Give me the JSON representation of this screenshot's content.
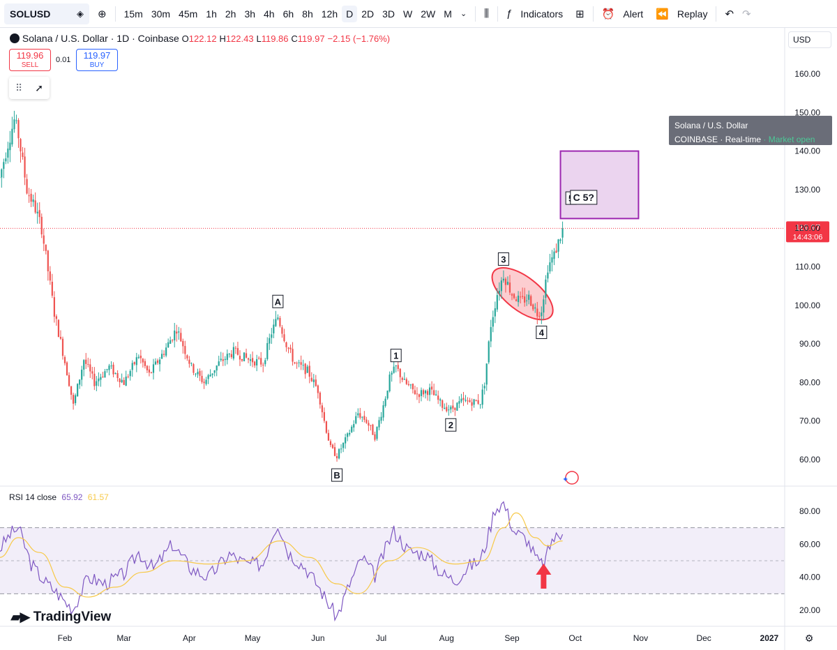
{
  "toolbar": {
    "symbol": "SOLUSD",
    "intervals": [
      "15m",
      "30m",
      "45m",
      "1h",
      "2h",
      "3h",
      "4h",
      "6h",
      "8h",
      "12h",
      "D",
      "2D",
      "3D",
      "W",
      "2W",
      "M"
    ],
    "active_interval": "D",
    "indicators_label": "Indicators",
    "alert_label": "Alert",
    "replay_label": "Replay"
  },
  "legend": {
    "title": "Solana / U.S. Dollar · 1D · Coinbase",
    "o_label": "O",
    "o_value": "122.12",
    "h_label": "H",
    "h_value": "122.43",
    "l_label": "L",
    "l_value": "119.86",
    "c_label": "C",
    "c_value": "119.97",
    "change": "−2.15 (−1.76%)"
  },
  "trade": {
    "sell_price": "119.96",
    "sell_label": "SELL",
    "spread": "0.01",
    "buy_price": "119.97",
    "buy_label": "BUY"
  },
  "tooltip": {
    "line1": "Solana / U.S. Dollar",
    "exchange": "COINBASE",
    "dot": "·",
    "realtime": "Real-time",
    "status": "Market open"
  },
  "currency": "USD",
  "price_label": {
    "value": "119.97",
    "countdown": "14:43:06"
  },
  "rsi": {
    "label": "RSI 14 close",
    "value": "65.92",
    "ma_value": "61.57"
  },
  "logo_text": "TradingView",
  "colors": {
    "up": "#26a69a",
    "down": "#ef5350",
    "rsi_line": "#7e57c2",
    "rsi_ma": "#f7c948",
    "target_box": "#9c27b0",
    "highlight": "#f23645"
  },
  "chart_data": [
    {
      "type": "candlestick",
      "title": "Solana / U.S. Dollar · 1D · Coinbase",
      "ylim": [
        53,
        170
      ],
      "y_ticks": [
        60,
        70,
        80,
        90,
        100,
        110,
        120,
        130,
        140,
        150,
        160
      ],
      "x_ticks": [
        "Feb",
        "Mar",
        "Apr",
        "May",
        "Jun",
        "Jul",
        "Aug",
        "Sep",
        "Oct",
        "Nov",
        "Dec",
        "2027"
      ],
      "current_price": 119.97,
      "price_path": [
        [
          "2026-01-01",
          133
        ],
        [
          "2026-01-05",
          142
        ],
        [
          "2026-01-08",
          148
        ],
        [
          "2026-01-10",
          144
        ],
        [
          "2026-01-14",
          130
        ],
        [
          "2026-01-18",
          125
        ],
        [
          "2026-01-21",
          120
        ],
        [
          "2026-01-24",
          109
        ],
        [
          "2026-01-27",
          98
        ],
        [
          "2026-01-31",
          88
        ],
        [
          "2026-02-03",
          80
        ],
        [
          "2026-02-05",
          74
        ],
        [
          "2026-02-10",
          86
        ],
        [
          "2026-02-15",
          80
        ],
        [
          "2026-02-22",
          84
        ],
        [
          "2026-03-01",
          80
        ],
        [
          "2026-03-08",
          87
        ],
        [
          "2026-03-13",
          82
        ],
        [
          "2026-03-20",
          88
        ],
        [
          "2026-03-26",
          94
        ],
        [
          "2026-04-02",
          84
        ],
        [
          "2026-04-08",
          80
        ],
        [
          "2026-04-15",
          85
        ],
        [
          "2026-04-22",
          88
        ],
        [
          "2026-04-29",
          86
        ],
        [
          "2026-05-06",
          85
        ],
        [
          "2026-05-10",
          93
        ],
        [
          "2026-05-13",
          97
        ],
        [
          "2026-05-17",
          90
        ],
        [
          "2026-05-21",
          85
        ],
        [
          "2026-05-27",
          83
        ],
        [
          "2026-06-01",
          78
        ],
        [
          "2026-06-04",
          70
        ],
        [
          "2026-06-07",
          63
        ],
        [
          "2026-06-10",
          61
        ],
        [
          "2026-06-15",
          66
        ],
        [
          "2026-06-20",
          72
        ],
        [
          "2026-06-24",
          70
        ],
        [
          "2026-06-28",
          66
        ],
        [
          "2026-07-02",
          74
        ],
        [
          "2026-07-05",
          81
        ],
        [
          "2026-07-08",
          84
        ],
        [
          "2026-07-12",
          80
        ],
        [
          "2026-07-18",
          77
        ],
        [
          "2026-07-24",
          78
        ],
        [
          "2026-07-30",
          74
        ],
        [
          "2026-08-03",
          73
        ],
        [
          "2026-08-08",
          75
        ],
        [
          "2026-08-14",
          75
        ],
        [
          "2026-08-17",
          75
        ],
        [
          "2026-08-19",
          80
        ],
        [
          "2026-08-22",
          95
        ],
        [
          "2026-08-25",
          103
        ],
        [
          "2026-08-28",
          108
        ],
        [
          "2026-09-01",
          103
        ],
        [
          "2026-09-05",
          101
        ],
        [
          "2026-09-09",
          102
        ],
        [
          "2026-09-13",
          98
        ],
        [
          "2026-09-15",
          99
        ],
        [
          "2026-09-18",
          110
        ],
        [
          "2026-09-21",
          113
        ],
        [
          "2026-09-24",
          118
        ],
        [
          "2026-09-25",
          120
        ]
      ],
      "wave_labels": [
        {
          "label": "A",
          "date": "2026-05-13",
          "price": 101
        },
        {
          "label": "B",
          "date": "2026-06-10",
          "price": 56
        },
        {
          "label": "1",
          "date": "2026-07-08",
          "price": 87
        },
        {
          "label": "2",
          "date": "2026-08-03",
          "price": 69
        },
        {
          "label": "3",
          "date": "2026-08-28",
          "price": 112
        },
        {
          "label": "4",
          "date": "2026-09-15",
          "price": 93
        },
        {
          "label": "5",
          "date": "2026-09-29",
          "price": 127.8
        },
        {
          "label": "C 5?",
          "date": "2026-10-05",
          "price": 128
        }
      ],
      "target_zone": {
        "from": "2026-09-24",
        "to": "2026-10-31",
        "low": 122.5,
        "high": 140
      }
    },
    {
      "type": "line",
      "title": "RSI 14 close",
      "ylim": [
        12,
        90
      ],
      "y_ticks": [
        20,
        40,
        60,
        80
      ],
      "bands": [
        30,
        50,
        70
      ],
      "series": [
        {
          "name": "RSI",
          "values_path": [
            [
              "2026-01-01",
              57
            ],
            [
              "2026-01-06",
              66
            ],
            [
              "2026-01-10",
              70
            ],
            [
              "2026-01-16",
              48
            ],
            [
              "2026-01-22",
              38
            ],
            [
              "2026-01-28",
              31
            ],
            [
              "2026-02-02",
              24
            ],
            [
              "2026-02-05",
              21
            ],
            [
              "2026-02-12",
              40
            ],
            [
              "2026-02-20",
              36
            ],
            [
              "2026-03-01",
              42
            ],
            [
              "2026-03-08",
              55
            ],
            [
              "2026-03-15",
              45
            ],
            [
              "2026-03-24",
              60
            ],
            [
              "2026-04-02",
              45
            ],
            [
              "2026-04-10",
              40
            ],
            [
              "2026-04-20",
              54
            ],
            [
              "2026-04-28",
              48
            ],
            [
              "2026-05-06",
              48
            ],
            [
              "2026-05-10",
              65
            ],
            [
              "2026-05-13",
              73
            ],
            [
              "2026-05-18",
              55
            ],
            [
              "2026-05-26",
              46
            ],
            [
              "2026-06-01",
              35
            ],
            [
              "2026-06-06",
              24
            ],
            [
              "2026-06-10",
              16
            ],
            [
              "2026-06-16",
              36
            ],
            [
              "2026-06-22",
              52
            ],
            [
              "2026-06-28",
              41
            ],
            [
              "2026-07-04",
              60
            ],
            [
              "2026-07-07",
              68
            ],
            [
              "2026-07-14",
              56
            ],
            [
              "2026-07-22",
              54
            ],
            [
              "2026-07-30",
              42
            ],
            [
              "2026-08-05",
              38
            ],
            [
              "2026-08-12",
              47
            ],
            [
              "2026-08-17",
              50
            ],
            [
              "2026-08-20",
              62
            ],
            [
              "2026-08-24",
              82
            ],
            [
              "2026-08-28",
              85
            ],
            [
              "2026-09-02",
              68
            ],
            [
              "2026-09-08",
              63
            ],
            [
              "2026-09-13",
              50
            ],
            [
              "2026-09-16",
              47
            ],
            [
              "2026-09-20",
              63
            ],
            [
              "2026-09-25",
              66
            ]
          ]
        },
        {
          "name": "RSI-based MA",
          "values_path": [
            [
              "2026-01-01",
              52
            ],
            [
              "2026-01-10",
              64
            ],
            [
              "2026-01-20",
              55
            ],
            [
              "2026-02-01",
              34
            ],
            [
              "2026-02-12",
              28
            ],
            [
              "2026-02-25",
              34
            ],
            [
              "2026-03-10",
              43
            ],
            [
              "2026-03-25",
              50
            ],
            [
              "2026-04-10",
              48
            ],
            [
              "2026-04-28",
              50
            ],
            [
              "2026-05-14",
              62
            ],
            [
              "2026-05-28",
              52
            ],
            [
              "2026-06-10",
              36
            ],
            [
              "2026-06-20",
              30
            ],
            [
              "2026-07-05",
              50
            ],
            [
              "2026-07-18",
              58
            ],
            [
              "2026-08-05",
              48
            ],
            [
              "2026-08-18",
              50
            ],
            [
              "2026-08-28",
              70
            ],
            [
              "2026-09-03",
              79
            ],
            [
              "2026-09-12",
              64
            ],
            [
              "2026-09-18",
              59
            ],
            [
              "2026-09-25",
              62
            ]
          ]
        }
      ]
    }
  ]
}
